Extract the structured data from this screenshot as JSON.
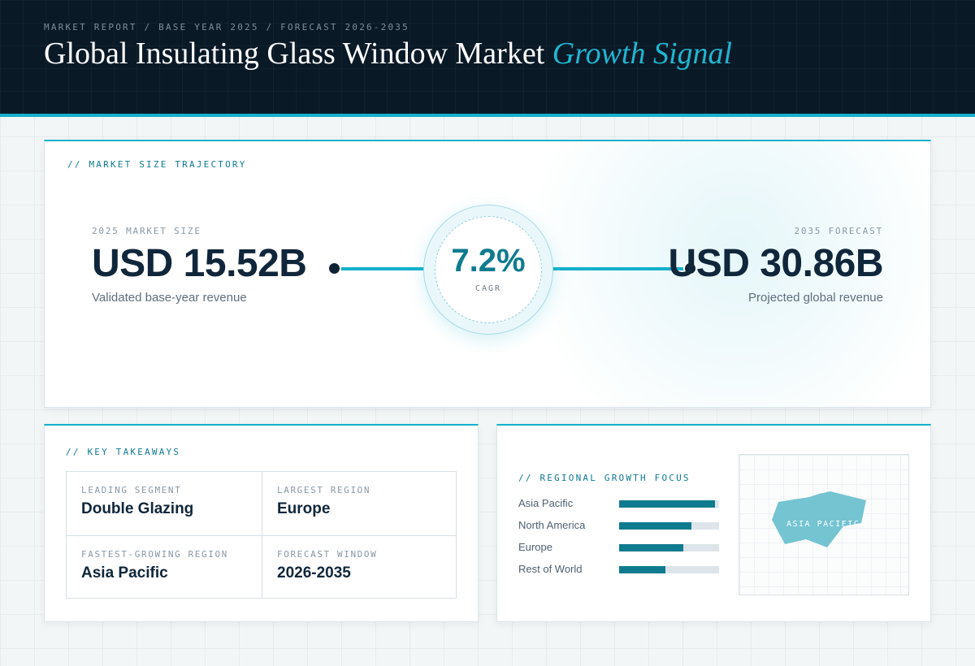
{
  "header": {
    "eyebrow": "MARKET REPORT / BASE YEAR 2025 / FORECAST 2026-2035",
    "title_main": "Global Insulating Glass Window Market",
    "title_accent": "Growth Signal"
  },
  "trajectory": {
    "section_label": "// MARKET SIZE TRAJECTORY",
    "base": {
      "kicker": "2025 MARKET SIZE",
      "value": "USD 15.52B",
      "caption": "Validated base-year revenue"
    },
    "cagr": {
      "value": "7.2%",
      "label": "CAGR"
    },
    "forecast": {
      "kicker": "2035 FORECAST",
      "value": "USD 30.86B",
      "caption": "Projected global revenue"
    }
  },
  "takeaways": {
    "section_label": "// KEY TAKEAWAYS",
    "items": [
      {
        "key": "LEADING SEGMENT",
        "value": "Double Glazing"
      },
      {
        "key": "LARGEST REGION",
        "value": "Europe"
      },
      {
        "key": "FASTEST-GROWING REGION",
        "value": "Asia Pacific"
      },
      {
        "key": "FORECAST WINDOW",
        "value": "2026-2035"
      }
    ]
  },
  "regional": {
    "section_label": "// REGIONAL GROWTH FOCUS",
    "bars": [
      {
        "name": "Asia Pacific",
        "level": 0.96
      },
      {
        "name": "North America",
        "level": 0.72
      },
      {
        "name": "Europe",
        "level": 0.64
      },
      {
        "name": "Rest of World",
        "level": 0.46
      }
    ],
    "map_label": "ASIA PACIFIC"
  },
  "colors": {
    "accent": "#14b0cc",
    "teal": "#0e7b8e",
    "navy": "#0a1926"
  }
}
